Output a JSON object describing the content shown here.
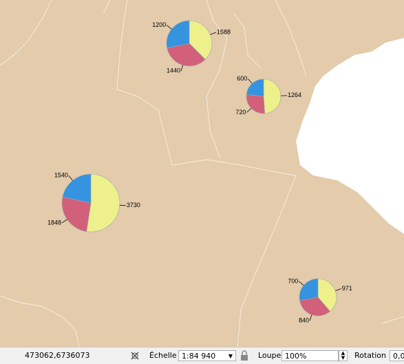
{
  "map": {
    "slice_colors": [
      "#eef08c",
      "#d2607a",
      "#3593e0"
    ],
    "pies": [
      {
        "values": [
          1588,
          1440,
          1200
        ]
      },
      {
        "values": [
          1264,
          720,
          600
        ]
      },
      {
        "values": [
          3730,
          1848,
          1540
        ]
      },
      {
        "values": [
          971,
          840,
          700
        ]
      }
    ]
  },
  "status_bar": {
    "coordinates": "473062,6736073",
    "scale_label": "Échelle",
    "scale": "1:84 940",
    "magnifier_label": "Loupe",
    "magnifier": "100%",
    "rotation_label": "Rotation",
    "rotation": "0,0"
  }
}
